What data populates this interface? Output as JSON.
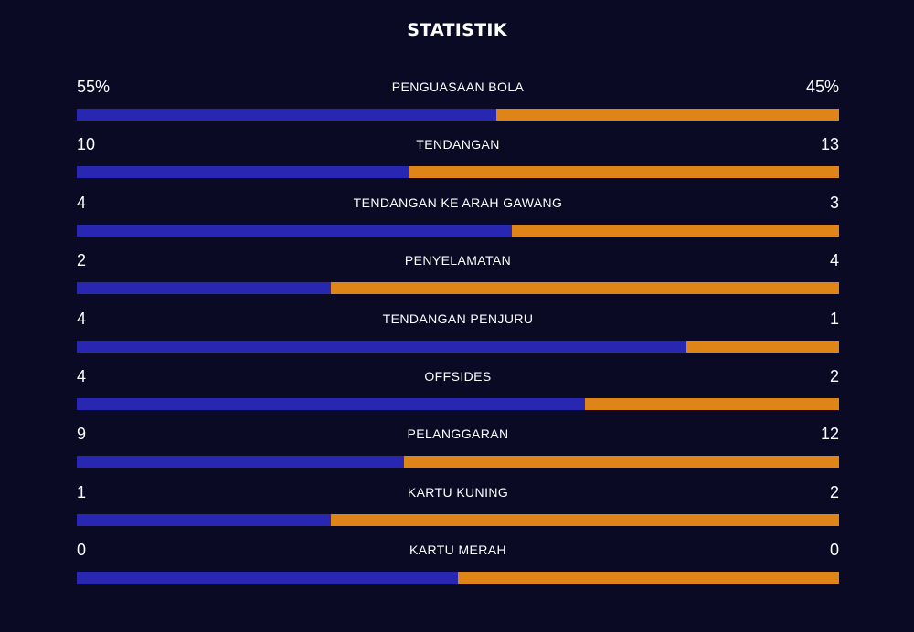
{
  "title": "STATISTIK",
  "colors": {
    "background": "#0a0a24",
    "home_bar": "#2727b2",
    "away_bar": "#df8416",
    "text": "#ffffff"
  },
  "stats": [
    {
      "label": "PENGUASAAN BOLA",
      "home": "55%",
      "away": "45%",
      "home_share": 0.55
    },
    {
      "label": "TENDANGAN",
      "home": "10",
      "away": "13",
      "home_share": 0.435
    },
    {
      "label": "TENDANGAN KE ARAH GAWANG",
      "home": "4",
      "away": "3",
      "home_share": 0.571
    },
    {
      "label": "PENYELAMATAN",
      "home": "2",
      "away": "4",
      "home_share": 0.333
    },
    {
      "label": "TENDANGAN PENJURU",
      "home": "4",
      "away": "1",
      "home_share": 0.8
    },
    {
      "label": "OFFSIDES",
      "home": "4",
      "away": "2",
      "home_share": 0.667
    },
    {
      "label": "PELANGGARAN",
      "home": "9",
      "away": "12",
      "home_share": 0.429
    },
    {
      "label": "KARTU KUNING",
      "home": "1",
      "away": "2",
      "home_share": 0.333
    },
    {
      "label": "KARTU MERAH",
      "home": "0",
      "away": "0",
      "home_share": 0.5
    }
  ]
}
